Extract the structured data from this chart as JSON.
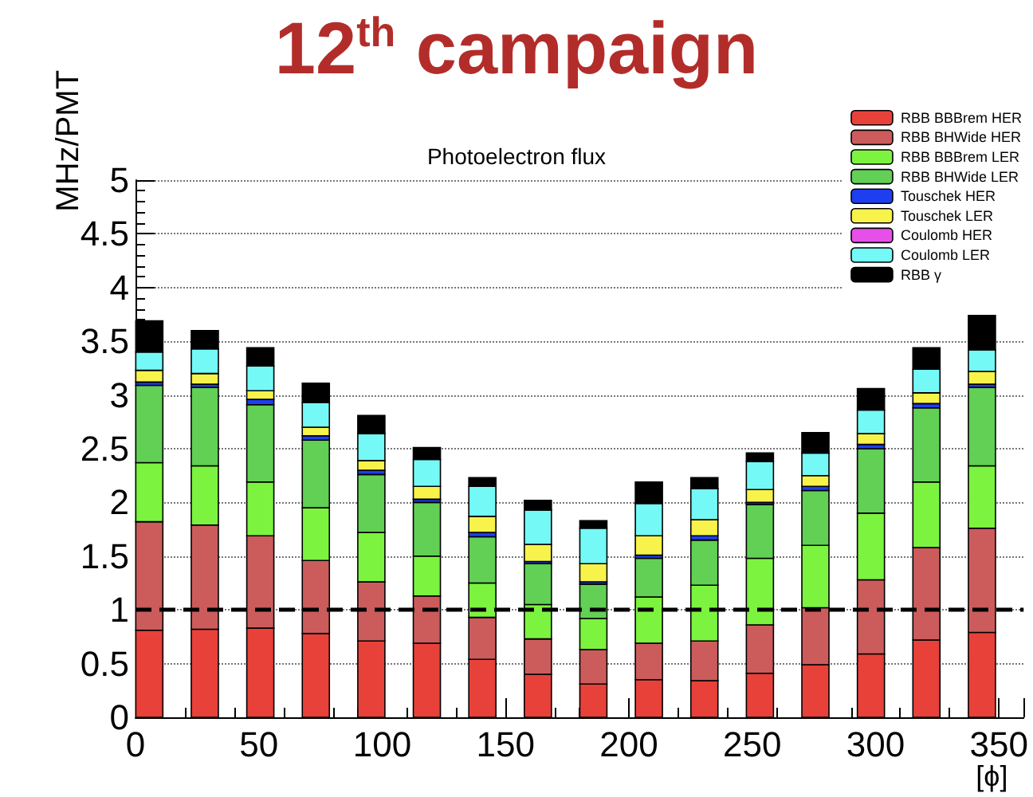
{
  "chart_data": {
    "type": "bar",
    "title": "12$^{th}$ campaign",
    "subtitle": "Photoelectron flux",
    "xlabel": "[ϕ]",
    "ylabel": "MHz/PMT",
    "stacked": true,
    "x": [
      5.6,
      28.1,
      50.6,
      73.1,
      95.6,
      118.1,
      140.6,
      163.1,
      185.6,
      208.1,
      230.6,
      253.1,
      275.6,
      298.1,
      320.6,
      343.1
    ],
    "series": [
      {
        "name": "RBB BBBrem HER",
        "color": "#e8413a",
        "values": [
          0.81,
          0.82,
          0.83,
          0.78,
          0.71,
          0.69,
          0.54,
          0.4,
          0.31,
          0.35,
          0.34,
          0.41,
          0.49,
          0.59,
          0.72,
          0.79
        ]
      },
      {
        "name": "RBB BHWide HER",
        "color": "#cc5c5c",
        "values": [
          1.01,
          0.97,
          0.86,
          0.68,
          0.55,
          0.44,
          0.39,
          0.33,
          0.32,
          0.34,
          0.37,
          0.45,
          0.53,
          0.69,
          0.86,
          0.97
        ]
      },
      {
        "name": "RBB BBBrem LER",
        "color": "#7cf33f",
        "values": [
          0.55,
          0.55,
          0.5,
          0.49,
          0.46,
          0.37,
          0.32,
          0.32,
          0.29,
          0.43,
          0.52,
          0.62,
          0.58,
          0.62,
          0.61,
          0.58
        ]
      },
      {
        "name": "RBB BHWide LER",
        "color": "#62cf55",
        "values": [
          0.72,
          0.73,
          0.72,
          0.63,
          0.54,
          0.5,
          0.43,
          0.38,
          0.32,
          0.36,
          0.42,
          0.5,
          0.51,
          0.6,
          0.69,
          0.73
        ]
      },
      {
        "name": "Touschek HER",
        "color": "#1d3ff0",
        "values": [
          0.03,
          0.03,
          0.05,
          0.04,
          0.04,
          0.03,
          0.04,
          0.02,
          0.02,
          0.03,
          0.04,
          0.02,
          0.04,
          0.04,
          0.04,
          0.03
        ]
      },
      {
        "name": "Touschek LER",
        "color": "#f7f34b",
        "values": [
          0.11,
          0.1,
          0.08,
          0.08,
          0.09,
          0.12,
          0.15,
          0.16,
          0.17,
          0.18,
          0.15,
          0.12,
          0.1,
          0.1,
          0.1,
          0.12
        ]
      },
      {
        "name": "Coulomb HER",
        "color": "#e650e8",
        "values": [
          0,
          0,
          0,
          0,
          0,
          0,
          0,
          0,
          0,
          0,
          0,
          0,
          0,
          0,
          0,
          0
        ]
      },
      {
        "name": "Coulomb LER",
        "color": "#74f9f7",
        "values": [
          0.17,
          0.23,
          0.23,
          0.23,
          0.25,
          0.25,
          0.28,
          0.32,
          0.33,
          0.3,
          0.29,
          0.26,
          0.21,
          0.22,
          0.22,
          0.2
        ]
      },
      {
        "name": "RBB γ",
        "color": "#000000",
        "values": [
          0.29,
          0.17,
          0.17,
          0.18,
          0.17,
          0.11,
          0.08,
          0.09,
          0.07,
          0.2,
          0.1,
          0.08,
          0.19,
          0.2,
          0.2,
          0.32
        ]
      }
    ],
    "xlim": [
      0,
      360
    ],
    "xticks": [
      0,
      50,
      100,
      150,
      200,
      250,
      300,
      350
    ],
    "ylim": [
      0,
      5
    ],
    "yticks": [
      0,
      0.5,
      1,
      1.5,
      2,
      2.5,
      3,
      3.5,
      4,
      4.5,
      5
    ],
    "ref_lines": [
      {
        "axis": "y",
        "value": 1,
        "color": "#000000",
        "line_style": "dashed"
      }
    ],
    "grid": "y",
    "legend": "top right"
  }
}
